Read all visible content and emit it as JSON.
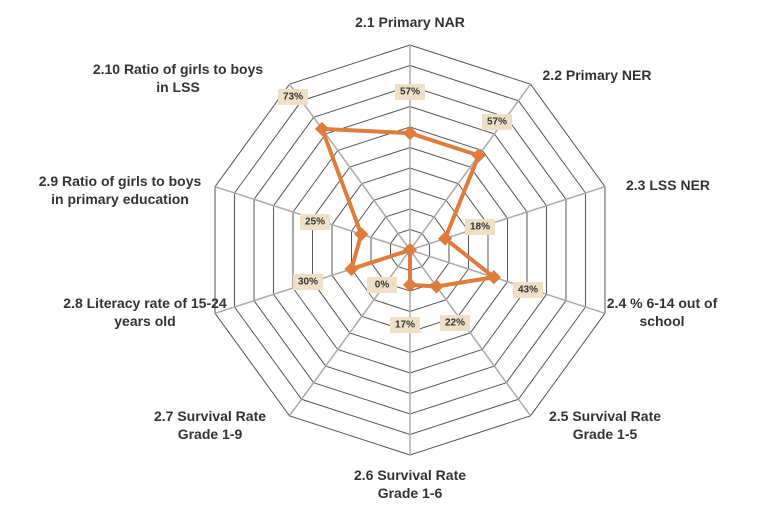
{
  "chart_data": {
    "type": "radar",
    "categories": [
      "2.1 Primary NAR",
      "2.2 Primary NER",
      "2.3 LSS NER",
      "2.4 % 6-14 out of school",
      "2.5 Survival Rate Grade 1-5",
      "2.6 Survival Rate Grade 1-6",
      "2.7 Survival Rate Grade 1-9",
      "2.8 Literacy rate of 15-24 years old",
      "2.9 Ratio of girls to boys in primary education",
      "2.10 Ratio of girls to boys in LSS"
    ],
    "values": [
      57,
      57,
      18,
      43,
      22,
      17,
      0,
      30,
      25,
      73
    ],
    "value_labels": [
      "57%",
      "57%",
      "18%",
      "43%",
      "22%",
      "17%",
      "0%",
      "30%",
      "25%",
      "73%"
    ],
    "color": "#e07b39",
    "rlim": [
      0,
      100
    ],
    "rticks": [
      10,
      20,
      30,
      40,
      50,
      60,
      70,
      80,
      90,
      100
    ],
    "grid": true
  }
}
